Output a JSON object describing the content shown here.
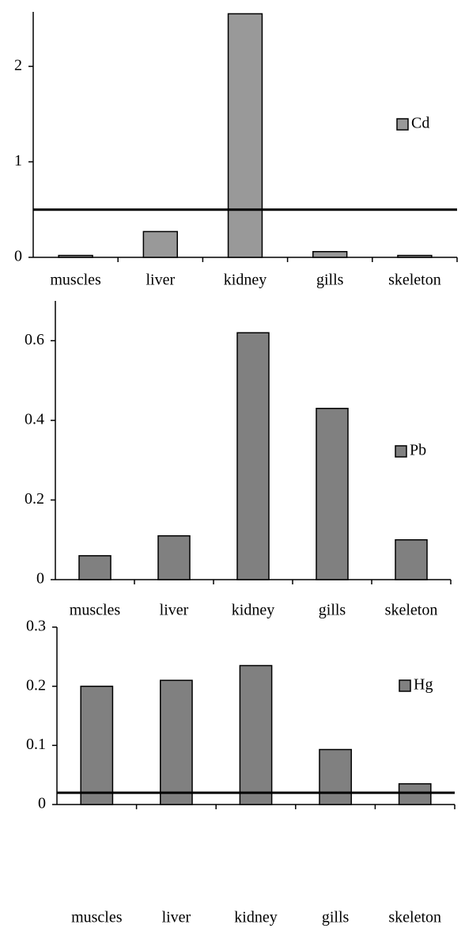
{
  "chart_data": [
    {
      "type": "bar",
      "categories": [
        "muscles",
        "liver",
        "kidney",
        "gills",
        "skeleton"
      ],
      "series": [
        {
          "name": "Cd",
          "color": "#999999",
          "values": [
            0.02,
            0.27,
            2.55,
            0.06,
            0.02
          ]
        }
      ],
      "ylim": [
        0,
        2.57
      ],
      "yticks": [
        0,
        1,
        2
      ],
      "hline": 0.5
    },
    {
      "type": "bar",
      "categories": [
        "muscles",
        "liver",
        "kidney",
        "gills",
        "skeleton"
      ],
      "series": [
        {
          "name": "Pb",
          "color": "#808080",
          "values": [
            0.06,
            0.11,
            0.62,
            0.43,
            0.1
          ]
        }
      ],
      "ylim": [
        0,
        0.7
      ],
      "yticks": [
        0,
        0.2,
        0.4,
        0.6
      ]
    },
    {
      "type": "bar",
      "categories": [
        "muscles",
        "liver",
        "kidney",
        "gills",
        "skeleton"
      ],
      "series": [
        {
          "name": "Hg",
          "color": "#808080",
          "values": [
            0.2,
            0.21,
            0.235,
            0.093,
            0.035
          ]
        }
      ],
      "ylim": [
        0,
        0.3
      ],
      "yticks": [
        0,
        0.1,
        0.2,
        0.3
      ],
      "hline": 0.02
    }
  ]
}
